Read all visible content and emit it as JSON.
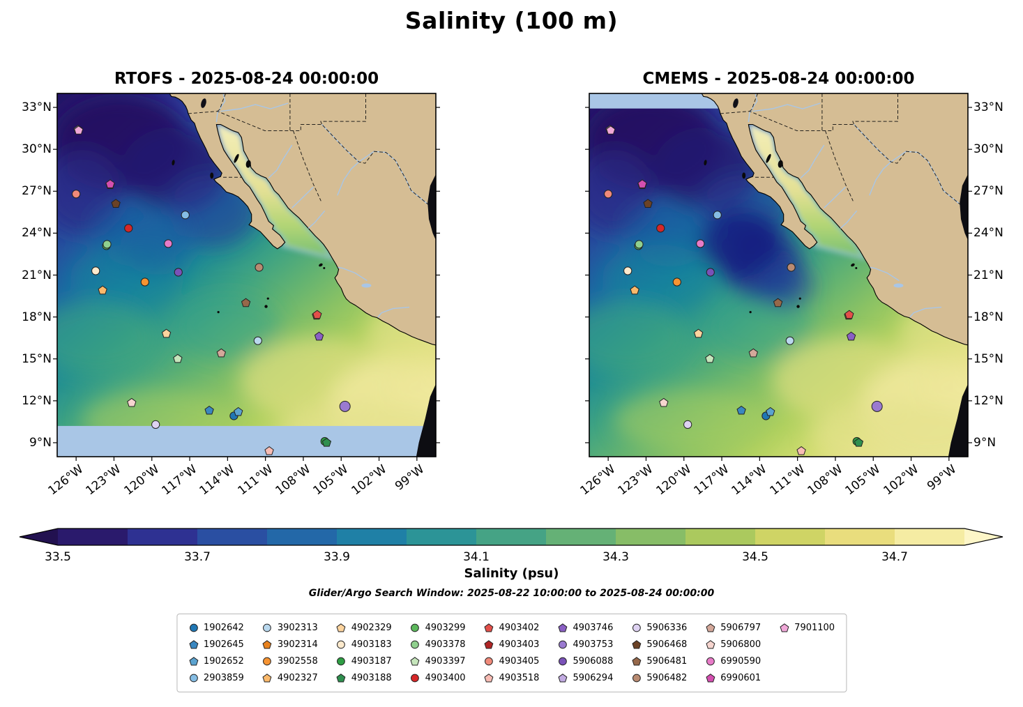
{
  "title": "Salinity (100 m)",
  "panels": [
    {
      "title": "RTOFS - 2025-08-24 00:00:00",
      "model": "RTOFS",
      "time": "2025-08-24 00:00:00",
      "ylabels": "left",
      "mask": "bottom"
    },
    {
      "title": "CMEMS - 2025-08-24 00:00:00",
      "model": "CMEMS",
      "time": "2025-08-24 00:00:00",
      "ylabels": "right",
      "mask": "top"
    }
  ],
  "axes": {
    "lat_tick_labels": [
      "33°N",
      "30°N",
      "27°N",
      "24°N",
      "21°N",
      "18°N",
      "15°N",
      "12°N",
      "9°N"
    ],
    "lat_tick_values": [
      33,
      30,
      27,
      24,
      21,
      18,
      15,
      12,
      9
    ],
    "lon_tick_labels": [
      "126°W",
      "123°W",
      "120°W",
      "117°W",
      "114°W",
      "111°W",
      "108°W",
      "105°W",
      "102°W",
      "99°W"
    ],
    "lon_tick_values": [
      -126,
      -123,
      -120,
      -117,
      -114,
      -111,
      -108,
      -105,
      -102,
      -99
    ]
  },
  "colorbar": {
    "label": "Salinity (psu)",
    "tick_labels": [
      "33.5",
      "33.7",
      "33.9",
      "34.1",
      "34.3",
      "34.5",
      "34.7"
    ],
    "tick_values": [
      33.5,
      33.7,
      33.9,
      34.1,
      34.3,
      34.5,
      34.7
    ],
    "vmin": 33.5,
    "vmax": 34.8,
    "segment_colors": [
      "#2a1a6c",
      "#2e3192",
      "#2a4fa2",
      "#2368a8",
      "#1f80a6",
      "#2c9497",
      "#45a385",
      "#65b176",
      "#87bd67",
      "#abc95e",
      "#cfd465",
      "#e9dd7d",
      "#f5eca3"
    ],
    "under_color": "#221150",
    "over_color": "#fdf6c8"
  },
  "annotations": {
    "search_window": "Glider/Argo Search Window: 2025-08-22 10:00:00 to 2025-08-24 00:00:00"
  },
  "map_colors": {
    "land": "#d5bd94",
    "coastline": "#000000",
    "masked_water": "#a9c6e6",
    "river": "#a9c6e6",
    "no_data": "#0d0d12"
  },
  "chart_data": {
    "type": "heatmap",
    "title": "Salinity (100 m)",
    "variable": "Salinity (psu)",
    "depth": "100 m",
    "panels": [
      "RTOFS - 2025-08-24 00:00:00",
      "CMEMS - 2025-08-24 00:00:00"
    ],
    "lon_range_deg": [
      -127.5,
      -97.5
    ],
    "lat_range_deg": [
      8,
      34
    ],
    "colorbar_ticks": [
      33.5,
      33.7,
      33.9,
      34.1,
      34.3,
      34.5,
      34.7
    ],
    "colorbar_range": [
      33.5,
      34.8
    ],
    "extend": "both",
    "gradient_summary": "Low salinity (~33.5 psu, dark indigo) in the NW offshore Pacific, increasing to the SE through teal and green to ~34.7+ psu (pale yellow) near the mainland coast, the southern band and the upper Gulf of California",
    "floats": [
      {
        "id": "1902642",
        "marker": "circle",
        "color": "#2077b4",
        "lon": -113.5,
        "lat": 10.92
      },
      {
        "id": "1902645",
        "marker": "pentagon",
        "color": "#3a87c0",
        "lon": -115.45,
        "lat": 11.3
      },
      {
        "id": "1902652",
        "marker": "pentagon",
        "color": "#5ba3d0",
        "lon": -113.15,
        "lat": 11.2
      },
      {
        "id": "2903859",
        "marker": "circle",
        "color": "#85bde4",
        "lon": -117.35,
        "lat": 25.3
      },
      {
        "id": "3902313",
        "marker": "circle",
        "color": "#b9d8ee",
        "lon": -111.6,
        "lat": 16.3
      },
      {
        "id": "3902314",
        "marker": "pentagon",
        "color": "#e8821e",
        "lon": -106.95,
        "lat": 18.1
      },
      {
        "id": "3902558",
        "marker": "circle",
        "color": "#f79432",
        "lon": -120.55,
        "lat": 20.5
      },
      {
        "id": "4902327",
        "marker": "pentagon",
        "color": "#fbb96b",
        "lon": -123.9,
        "lat": 19.9
      },
      {
        "id": "4902329",
        "marker": "pentagon",
        "color": "#fdd49e",
        "lon": -118.85,
        "lat": 16.8
      },
      {
        "id": "4903183",
        "marker": "circle",
        "color": "#fdeacd",
        "lon": -124.45,
        "lat": 21.3
      },
      {
        "id": "4903187",
        "marker": "circle",
        "color": "#2f9e44",
        "lon": -106.3,
        "lat": 9.1
      },
      {
        "id": "4903188",
        "marker": "pentagon",
        "color": "#2f8f4f",
        "lon": -106.15,
        "lat": 9.0
      },
      {
        "id": "4903299",
        "marker": "circle",
        "color": "#5cb85c",
        "lon": -123.6,
        "lat": 23.1
      },
      {
        "id": "4903378",
        "marker": "circle",
        "color": "#90d08e",
        "lon": -123.55,
        "lat": 23.2
      },
      {
        "id": "4903397",
        "marker": "pentagon",
        "color": "#c6e6bc",
        "lon": -117.95,
        "lat": 15.0
      },
      {
        "id": "4903400",
        "marker": "circle",
        "color": "#d62728",
        "lon": -121.85,
        "lat": 24.35
      },
      {
        "id": "4903402",
        "marker": "pentagon",
        "color": "#e3504a",
        "lon": -106.9,
        "lat": 18.15
      },
      {
        "id": "4903403",
        "marker": "pentagon",
        "color": "#b02525",
        "lon": -123.3,
        "lat": 27.45
      },
      {
        "id": "4903405",
        "marker": "circle",
        "color": "#f08a7a",
        "lon": -126.0,
        "lat": 26.8
      },
      {
        "id": "4903518",
        "marker": "pentagon",
        "color": "#f8bcb4",
        "lon": -110.7,
        "lat": 8.4
      },
      {
        "id": "4903746",
        "marker": "pentagon",
        "color": "#8a5fc4",
        "lon": -106.75,
        "lat": 16.6
      },
      {
        "id": "4903753",
        "marker": "circle",
        "color": "#9a7ad0",
        "lon": -104.7,
        "lat": 11.6,
        "size": 7.5
      },
      {
        "id": "5906088",
        "marker": "circle",
        "color": "#7a52b8",
        "lon": -117.9,
        "lat": 21.2
      },
      {
        "id": "5906294",
        "marker": "pentagon",
        "color": "#c2abe2",
        "lon": -125.85,
        "lat": 31.4
      },
      {
        "id": "5906336",
        "marker": "circle",
        "color": "#ded2f2",
        "lon": -119.7,
        "lat": 10.3
      },
      {
        "id": "5906468",
        "marker": "pentagon",
        "color": "#6b4226",
        "lon": -122.85,
        "lat": 26.1
      },
      {
        "id": "5906481",
        "marker": "pentagon",
        "color": "#96684a",
        "lon": -112.55,
        "lat": 19.0
      },
      {
        "id": "5906482",
        "marker": "circle",
        "color": "#b98b72",
        "lon": -111.5,
        "lat": 21.55
      },
      {
        "id": "5906797",
        "marker": "pentagon",
        "color": "#d4a89a",
        "lon": -114.5,
        "lat": 15.4
      },
      {
        "id": "5906800",
        "marker": "pentagon",
        "color": "#f6d5cf",
        "lon": -121.6,
        "lat": 11.85
      },
      {
        "id": "6990590",
        "marker": "circle",
        "color": "#e87bc8",
        "lon": -118.7,
        "lat": 23.25
      },
      {
        "id": "6990601",
        "marker": "pentagon",
        "color": "#d44fb0",
        "lon": -123.3,
        "lat": 27.5
      },
      {
        "id": "7901100",
        "marker": "pentagon",
        "color": "#f0a8d8",
        "lon": -125.8,
        "lat": 31.35
      }
    ]
  }
}
